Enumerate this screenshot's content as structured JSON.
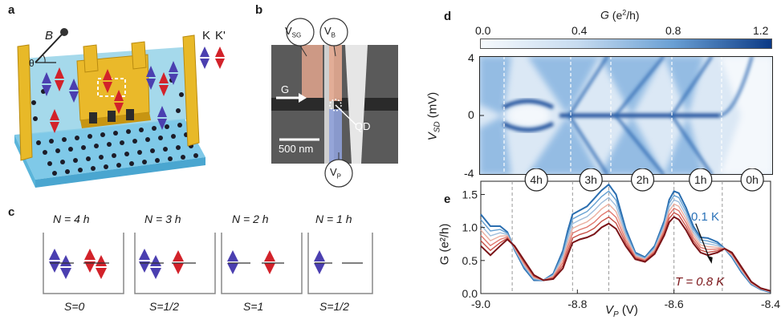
{
  "panels": {
    "a": {
      "label": "a",
      "field_label": "B",
      "angle_label": "θ",
      "valley_labels": [
        "K",
        "K'"
      ]
    },
    "b": {
      "label": "b",
      "gate_labels": [
        "V",
        "V",
        "V"
      ],
      "gate_subscripts": [
        "SG",
        "B",
        "P"
      ],
      "arrow_label": "G",
      "qd_label": "QD",
      "scalebar_label": "500 nm"
    },
    "c": {
      "label": "c",
      "states": [
        {
          "title": "N = 4 h",
          "spin": "S=0"
        },
        {
          "title": "N = 3 h",
          "spin": "S=1/2"
        },
        {
          "title": "N = 2 h",
          "spin": "S=1"
        },
        {
          "title": "N = 1 h",
          "spin": "S=1/2"
        }
      ]
    },
    "d": {
      "label": "d",
      "colorbar_title": "G (e²/h)",
      "colorbar_ticks": [
        "0.0",
        "0.4",
        "0.8",
        "1.2"
      ],
      "ylabel": "V",
      "ylabel_sub": "SD",
      "ylabel_unit": "(mV)",
      "yticks": [
        "4",
        "0",
        "-4"
      ]
    },
    "e": {
      "label": "e",
      "occupancy_labels": [
        "4h",
        "3h",
        "2h",
        "1h",
        "0h"
      ],
      "ylabel": "G (e²/h)",
      "xlabel": "V",
      "xlabel_sub": "P",
      "xlabel_unit": "(V)",
      "annot_low": "0.1 K",
      "annot_high": "T = 0.8 K"
    }
  },
  "colors": {
    "hole_purple": "#4b3fb0",
    "hole_red": "#d2222a",
    "gold": "#e8b928",
    "map_dark": "#1a4e9a",
    "trace_cold": "#2a6db0",
    "trace_hot": "#7a1418"
  },
  "chart_data": {
    "type": "line",
    "xlim": [
      -9.0,
      -8.4
    ],
    "ylim": [
      0.0,
      1.7
    ],
    "xticks": [
      "-9.0",
      "-8.8",
      "-8.6",
      "-8.4"
    ],
    "yticks": [
      "0.0",
      "0.5",
      "1.0",
      "1.5"
    ],
    "dashed_x": [
      -8.935,
      -8.81,
      -8.735,
      -8.6,
      -8.5
    ],
    "temperature_range": [
      "0.1 K",
      "0.8 K"
    ],
    "series": [
      {
        "name": "0.1 K",
        "x": [
          -9.0,
          -8.98,
          -8.96,
          -8.945,
          -8.93,
          -8.91,
          -8.89,
          -8.87,
          -8.85,
          -8.83,
          -8.82,
          -8.81,
          -8.795,
          -8.78,
          -8.765,
          -8.75,
          -8.735,
          -8.72,
          -8.7,
          -8.68,
          -8.66,
          -8.64,
          -8.62,
          -8.61,
          -8.6,
          -8.59,
          -8.575,
          -8.56,
          -8.545,
          -8.53,
          -8.51,
          -8.495,
          -8.48,
          -8.46,
          -8.44,
          -8.42,
          -8.4
        ],
        "y": [
          1.2,
          1.02,
          1.02,
          0.93,
          0.66,
          0.38,
          0.2,
          0.2,
          0.3,
          0.65,
          0.95,
          1.2,
          1.26,
          1.32,
          1.44,
          1.56,
          1.65,
          1.5,
          0.98,
          0.62,
          0.55,
          0.72,
          1.1,
          1.42,
          1.55,
          1.52,
          1.3,
          1.02,
          0.85,
          0.84,
          0.78,
          0.68,
          0.55,
          0.32,
          0.14,
          0.06,
          0.02
        ]
      },
      {
        "name": "0.8 K",
        "x": [
          -9.0,
          -8.98,
          -8.96,
          -8.945,
          -8.93,
          -8.91,
          -8.89,
          -8.87,
          -8.85,
          -8.83,
          -8.82,
          -8.81,
          -8.795,
          -8.78,
          -8.765,
          -8.75,
          -8.735,
          -8.72,
          -8.7,
          -8.68,
          -8.66,
          -8.64,
          -8.62,
          -8.61,
          -8.6,
          -8.59,
          -8.575,
          -8.56,
          -8.545,
          -8.53,
          -8.51,
          -8.495,
          -8.48,
          -8.46,
          -8.44,
          -8.42,
          -8.4
        ],
        "y": [
          0.72,
          0.58,
          0.72,
          0.82,
          0.72,
          0.5,
          0.28,
          0.2,
          0.22,
          0.38,
          0.58,
          0.77,
          0.82,
          0.85,
          0.9,
          1.0,
          1.06,
          0.98,
          0.72,
          0.52,
          0.48,
          0.6,
          0.88,
          1.08,
          1.16,
          1.12,
          0.96,
          0.76,
          0.62,
          0.58,
          0.62,
          0.68,
          0.62,
          0.4,
          0.18,
          0.08,
          0.04
        ]
      }
    ]
  }
}
